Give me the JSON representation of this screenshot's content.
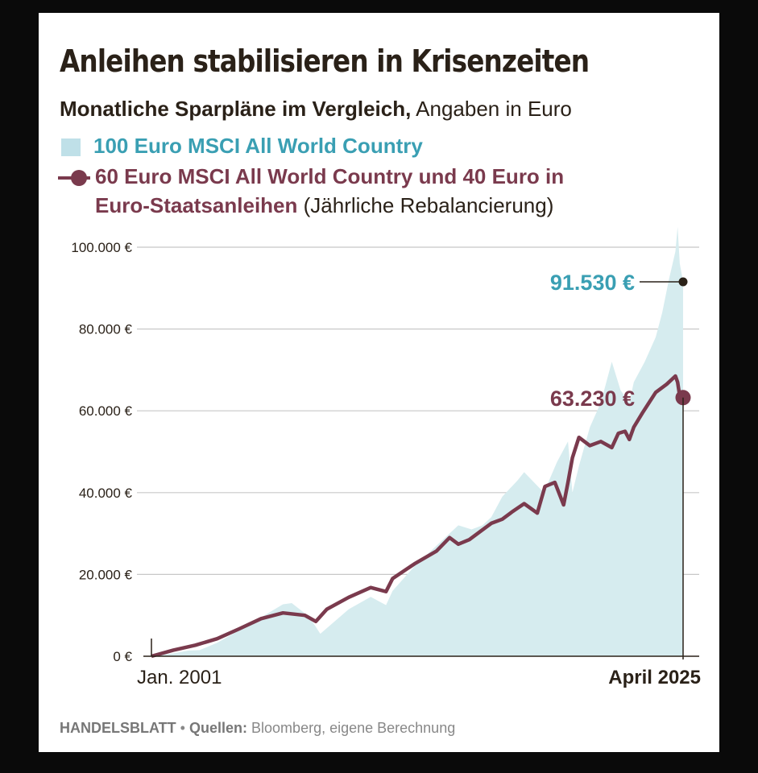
{
  "source": {
    "brand": "HANDELSBLATT",
    "bullet": "•",
    "label": "Quellen:",
    "text": "Bloomberg, eigene Berechnung"
  },
  "colors": {
    "area": "#d6ecef",
    "area_legend": "#bfe0e8",
    "area_text": "#3a9fb3",
    "line": "#7a3a4d",
    "grid": "#c8c8c8",
    "text": "#2a2118"
  },
  "chart_data": {
    "type": "area",
    "title": "Anleihen stabilisieren in Krisenzeiten",
    "subtitle_bold": "Monatliche Sparpläne im Vergleich,",
    "subtitle_plain": "Angaben in Euro",
    "ylim": [
      0,
      100000
    ],
    "y_ticks": [
      {
        "value": 0,
        "label": "0 €"
      },
      {
        "value": 20000,
        "label": "20.000 €"
      },
      {
        "value": 40000,
        "label": "40.000 €"
      },
      {
        "value": 60000,
        "label": "60.000 €"
      },
      {
        "value": 80000,
        "label": "80.000 €"
      },
      {
        "value": 100000,
        "label": "100.000 €"
      }
    ],
    "x_start_label": "Jan. 2001",
    "x_end_label": "April 2025",
    "grid": true,
    "series": [
      {
        "name": "100 Euro MSCI All World Country",
        "style": "area",
        "end_label": "91.530 €",
        "x": [
          2001,
          2002,
          2002.7,
          2003.2,
          2004,
          2005,
          2006,
          2007,
          2007.4,
          2008,
          2008.4,
          2008.7,
          2009.2,
          2010,
          2011,
          2011.7,
          2012,
          2013,
          2014,
          2015,
          2015.6,
          2016.1,
          2016.5,
          2017,
          2017.7,
          2018,
          2018.9,
          2019.5,
          2020,
          2020.2,
          2020.5,
          2021,
          2021.5,
          2022,
          2022.4,
          2022.8,
          2023,
          2023.5,
          2024,
          2024.3,
          2024.6,
          2024.9,
          2025.0,
          2025.1,
          2025.25
        ],
        "values": [
          0,
          700,
          1400,
          1500,
          3300,
          6300,
          9500,
          12700,
          13000,
          10500,
          8000,
          5500,
          7800,
          11500,
          14500,
          12500,
          16000,
          22000,
          27000,
          32000,
          31000,
          32000,
          34000,
          39000,
          43000,
          45000,
          40000,
          47500,
          52500,
          40000,
          46500,
          56000,
          62000,
          72000,
          65000,
          62000,
          67000,
          72000,
          78000,
          84000,
          92000,
          99000,
          105000,
          96000,
          91530
        ]
      },
      {
        "name": "60 Euro MSCI All World Country und 40 Euro in Euro-Staatsanleihen",
        "name_part1": "60 Euro MSCI All World Country und 40 Euro in",
        "name_part2": "Euro-Staatsanleihen",
        "name_note": "(Jährliche Rebalancierung)",
        "style": "line",
        "end_label": "63.230 €",
        "x": [
          2001,
          2002,
          2003,
          2004,
          2005,
          2006,
          2007,
          2008,
          2008.5,
          2009,
          2010,
          2011,
          2011.7,
          2012,
          2013,
          2014,
          2014.6,
          2015,
          2015.5,
          2016,
          2016.5,
          2017,
          2017.5,
          2018,
          2018.6,
          2018.95,
          2019.4,
          2019.8,
          2020.0,
          2020.2,
          2020.5,
          2021,
          2021.5,
          2022,
          2022.3,
          2022.6,
          2022.8,
          2023.0,
          2023.4,
          2023.7,
          2024,
          2024.5,
          2024.9,
          2025.0,
          2025.1,
          2025.25
        ],
        "values": [
          0,
          1500,
          2700,
          4300,
          6700,
          9200,
          10600,
          10000,
          8500,
          11500,
          14400,
          16800,
          15800,
          19000,
          22600,
          25700,
          29000,
          27400,
          28500,
          30500,
          32500,
          33500,
          35500,
          37300,
          35000,
          41500,
          42500,
          37000,
          42500,
          48500,
          53500,
          51500,
          52500,
          51000,
          54500,
          55000,
          53000,
          56000,
          59500,
          62000,
          64500,
          66500,
          68500,
          67000,
          63500,
          63230
        ]
      }
    ]
  }
}
